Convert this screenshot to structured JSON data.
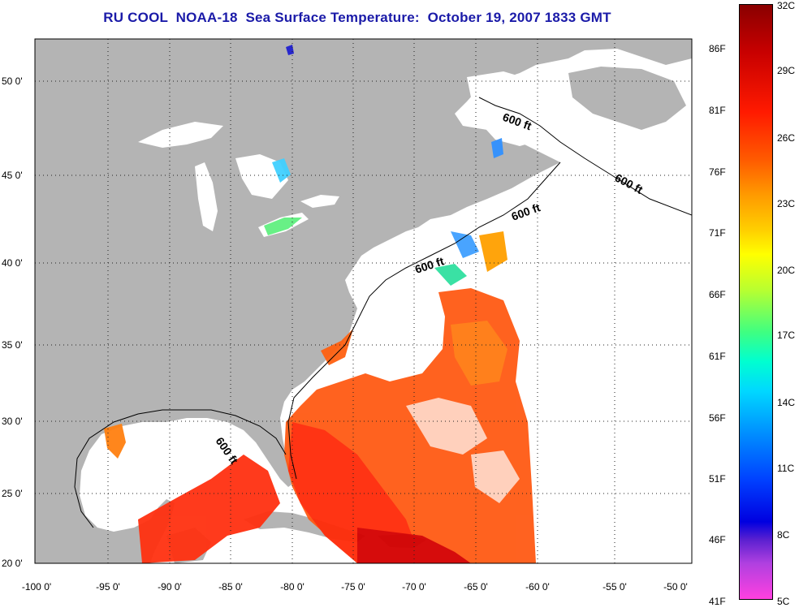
{
  "title": "RU COOL  NOAA-18  Sea Surface Temperature:  October 19, 2007 1833 GMT",
  "lat_labels": [
    "50 0'",
    "45 0'",
    "40 0'",
    "35 0'",
    "30 0'",
    "25 0'",
    "20 0'"
  ],
  "lon_labels": [
    "-100 0'",
    "-95 0'",
    "-90 0'",
    "-85 0'",
    "-80 0'",
    "-75 0'",
    "-70 0'",
    "-65 0'",
    "-60 0'",
    "-55 0'",
    "-50 0'"
  ],
  "contour_labels": [
    "600 ft",
    "600 ft",
    "600 ft",
    "600 ft",
    "600 ft"
  ],
  "colorbar": {
    "fahrenheit": [
      "86F",
      "81F",
      "76F",
      "71F",
      "66F",
      "61F",
      "56F",
      "51F",
      "46F",
      "41F"
    ],
    "celsius": [
      "32C",
      "29C",
      "26C",
      "23C",
      "20C",
      "17C",
      "14C",
      "11C",
      "8C",
      "5C"
    ]
  },
  "colors": {
    "land": "#b4b4b4",
    "ocean_nodata": "#ffffff",
    "title": "#1a1aa8"
  }
}
